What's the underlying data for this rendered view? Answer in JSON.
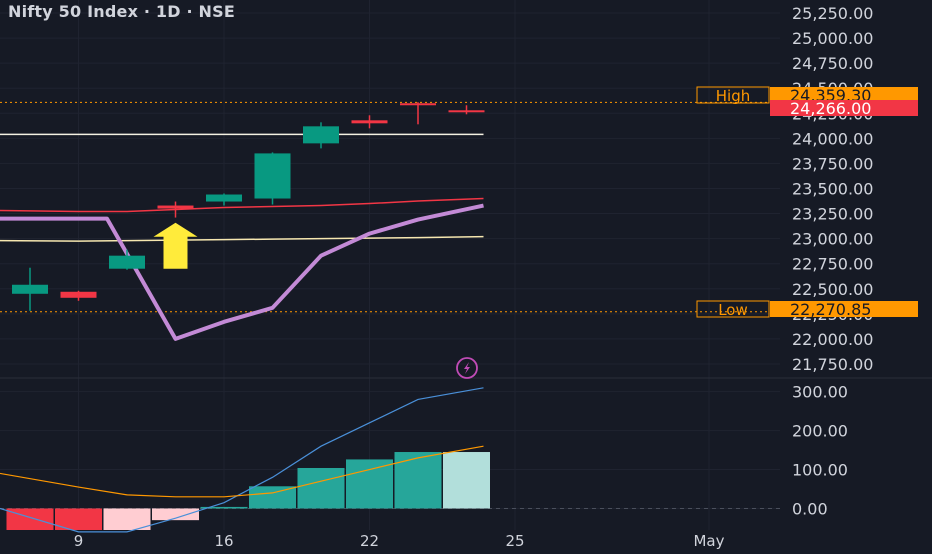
{
  "title": "Nifty 50 Index · 1D · NSE",
  "colors": {
    "background": "#161a25",
    "up": "#089981",
    "down": "#f23645",
    "text": "#d1d4dc",
    "grid": "#1f2330",
    "purple": "#c38ad6",
    "white_line": "#f5f2e3",
    "red_line": "#f23645",
    "yellow_line": "#f6e7b0",
    "arrow": "#ffeb3b",
    "label_orange": "#ff9800",
    "blue_line": "#4a90d9",
    "orange_line": "#ff9800",
    "hist_pink": "#ffcdd2",
    "hist_red": "#f23645",
    "hist_teal": "#26a69a",
    "hist_light": "#b2dfdb",
    "icon_purple": "#c04bb6"
  },
  "chart_data": [
    {
      "type": "candlestick",
      "title": "Nifty 50 Index · 1D · NSE",
      "ylim": [
        21650,
        25300
      ],
      "y_ticks": [
        "25,250.00",
        "25,000.00",
        "24,750.00",
        "24,500.00",
        "24,250.00",
        "24,000.00",
        "23,750.00",
        "23,500.00",
        "23,250.00",
        "23,000.00",
        "22,750.00",
        "22,500.00",
        "22,250.00",
        "22,000.00",
        "21,750.00"
      ],
      "y_tick_values": [
        25250,
        25000,
        24750,
        24500,
        24250,
        24000,
        23750,
        23500,
        23250,
        23000,
        22750,
        22500,
        22250,
        22000,
        21750
      ],
      "x_ticks": [
        "9",
        "16",
        "22",
        "25",
        "May"
      ],
      "candles": [
        {
          "open": 22450,
          "high": 22710,
          "low": 22280,
          "close": 22540
        },
        {
          "open": 22470,
          "high": 22480,
          "low": 22380,
          "close": 22410
        },
        {
          "open": 22700,
          "high": 22890,
          "low": 22690,
          "close": 22830
        },
        {
          "open": 23330,
          "high": 23370,
          "low": 23210,
          "close": 23300
        },
        {
          "open": 23370,
          "high": 23450,
          "low": 23330,
          "close": 23440
        },
        {
          "open": 23400,
          "high": 23860,
          "low": 23340,
          "close": 23850
        },
        {
          "open": 23950,
          "high": 24160,
          "low": 23900,
          "close": 24120
        },
        {
          "open": 24180,
          "high": 24230,
          "low": 24100,
          "close": 24150
        },
        {
          "open": 24350,
          "high": 24360,
          "low": 24140,
          "close": 24335
        },
        {
          "open": 24280,
          "high": 24330,
          "low": 24240,
          "close": 24266
        }
      ],
      "lines": [
        {
          "name": "white",
          "y": [
            24040,
            24040,
            24040,
            24040,
            24040,
            24040,
            24040,
            24040,
            24040,
            24040
          ]
        },
        {
          "name": "red",
          "y": [
            23280,
            23270,
            23270,
            23290,
            23310,
            23320,
            23330,
            23350,
            23375,
            23400
          ]
        },
        {
          "name": "yellow",
          "y": [
            22980,
            22975,
            22980,
            22985,
            22990,
            22995,
            23000,
            23005,
            23010,
            23020
          ]
        },
        {
          "name": "purple",
          "y": [
            23200,
            23200,
            23200,
            22000,
            22170,
            22310,
            22830,
            23050,
            23190,
            23330
          ]
        }
      ],
      "arrow": {
        "index": 3,
        "value": 22700
      },
      "price_labels": [
        {
          "label": "High",
          "value": "24,359.30",
          "price": 24359.3
        },
        {
          "label": "",
          "value": "24,266.00",
          "price": 24266
        },
        {
          "label": "Low",
          "value": "22,270.85",
          "price": 22270.85
        }
      ]
    },
    {
      "type": "bar",
      "ylim": [
        -45,
        330
      ],
      "y_ticks": [
        "300.00",
        "200.00",
        "100.00",
        "0.00"
      ],
      "y_tick_values": [
        300,
        200,
        100,
        0
      ],
      "histogram": [
        {
          "value": -60,
          "color": "hist_red"
        },
        {
          "value": -60,
          "color": "hist_red"
        },
        {
          "value": -60,
          "color": "hist_pink"
        },
        {
          "value": -30,
          "color": "hist_pink"
        },
        {
          "value": 4,
          "color": "hist_teal"
        },
        {
          "value": 57,
          "color": "hist_teal"
        },
        {
          "value": 104,
          "color": "hist_teal"
        },
        {
          "value": 126,
          "color": "hist_teal"
        },
        {
          "value": 145,
          "color": "hist_teal"
        },
        {
          "value": 145,
          "color": "hist_light"
        }
      ],
      "blue_line": [
        0,
        -60,
        -60,
        -25,
        15,
        80,
        160,
        220,
        280,
        310
      ],
      "orange_line": [
        90,
        55,
        35,
        30,
        30,
        40,
        70,
        100,
        130,
        160
      ]
    }
  ]
}
